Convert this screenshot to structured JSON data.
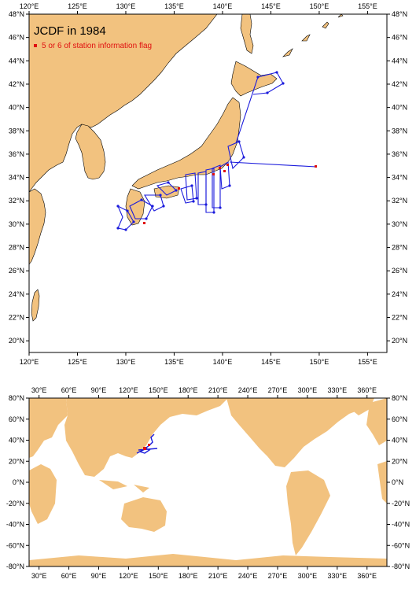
{
  "top_map": {
    "title": "JCDF in 1984",
    "legend_label": "5 or 6 of station information flag",
    "lon_ticks": [
      "120°E",
      "125°E",
      "130°E",
      "135°E",
      "140°E",
      "145°E",
      "150°E",
      "155°E"
    ],
    "lat_ticks": [
      "20°N",
      "22°N",
      "24°N",
      "26°N",
      "28°N",
      "30°N",
      "32°N",
      "34°N",
      "36°N",
      "38°N",
      "40°N",
      "42°N",
      "44°N",
      "46°N",
      "48°N"
    ],
    "lat_ticks_right": [
      "20°N",
      "22°N",
      "24°N",
      "26°N",
      "28°N",
      "30°N",
      "32°N",
      "34°N",
      "36°N",
      "38°N",
      "40°N",
      "42°N",
      "44°N",
      "46°N",
      "48°N"
    ],
    "lon_range": [
      120,
      157
    ],
    "lat_range": [
      19,
      48
    ],
    "colors": {
      "land": "#f2c27f",
      "track": "#1a1adc",
      "flag": "#e01010"
    }
  },
  "bottom_map": {
    "lon_ticks": [
      "30°E",
      "60°E",
      "90°E",
      "120°E",
      "150°E",
      "180°E",
      "210°E",
      "240°E",
      "270°E",
      "300°E",
      "330°E",
      "360°E"
    ],
    "lat_ticks": [
      "-80°N",
      "-60°N",
      "-40°N",
      "-20°N",
      "0°N",
      "20°N",
      "40°N",
      "60°N",
      "80°N"
    ],
    "lon_range": [
      20,
      380
    ],
    "lat_range": [
      -80,
      80
    ]
  }
}
